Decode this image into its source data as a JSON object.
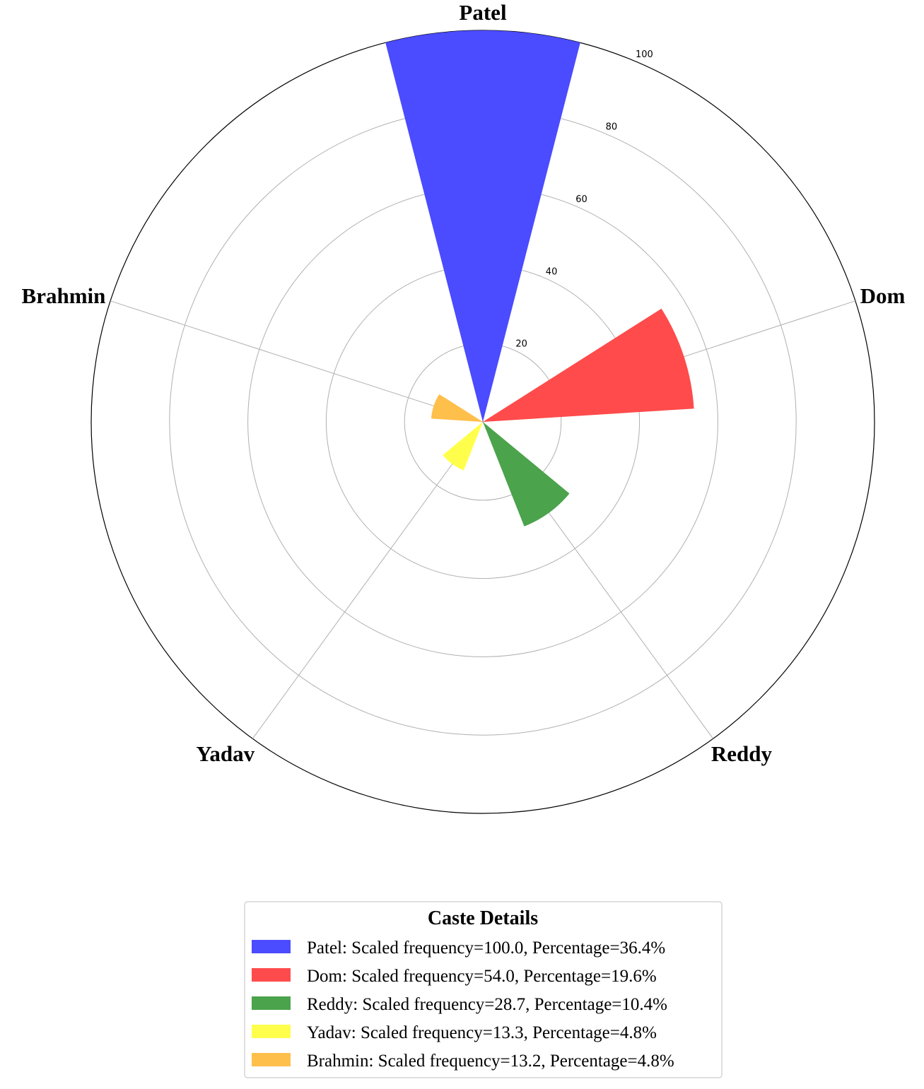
{
  "chart_data": {
    "type": "polar-bar",
    "title": "",
    "categories": [
      "Patel",
      "Dom",
      "Reddy",
      "Yadav",
      "Brahmin"
    ],
    "values": [
      100.0,
      54.0,
      28.7,
      13.3,
      13.2
    ],
    "colors": [
      "#4b4bff",
      "#ff4b4b",
      "#4ba34b",
      "#ffff4b",
      "#ffbf4b"
    ],
    "rlim": [
      0,
      100
    ],
    "r_ticks": [
      "20",
      "40",
      "60",
      "80",
      "100"
    ],
    "grid": true,
    "legend": {
      "title": "Caste Details",
      "placement": "bottom-center",
      "entries": [
        "Patel: Scaled frequency=100.0, Percentage=36.4%",
        "Dom: Scaled frequency=54.0, Percentage=19.6%",
        "Reddy: Scaled frequency=28.7, Percentage=10.4%",
        "Yadav: Scaled frequency=13.3, Percentage=4.8%",
        "Brahmin: Scaled frequency=13.2, Percentage=4.8%"
      ]
    }
  }
}
